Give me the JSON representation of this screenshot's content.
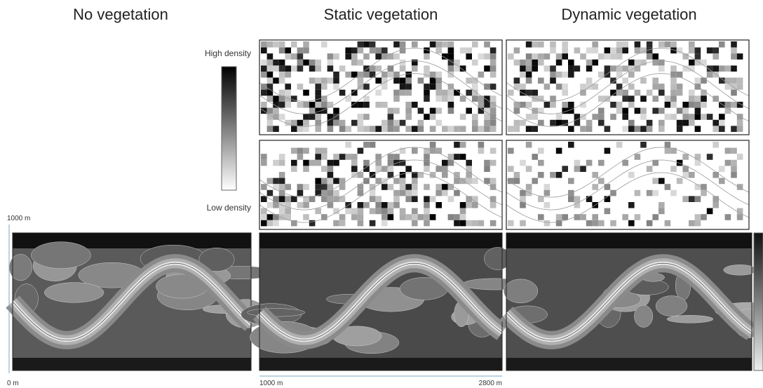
{
  "titles": [
    "No vegetation",
    "Static vegetation",
    "Dynamic vegetation"
  ],
  "colorbar": {
    "high": "High density",
    "low": "Low density"
  },
  "axes": {
    "y_top": "1000 m",
    "y_bottom": "0 m",
    "x_left": "1000 m",
    "x_right": "2800 m"
  }
}
